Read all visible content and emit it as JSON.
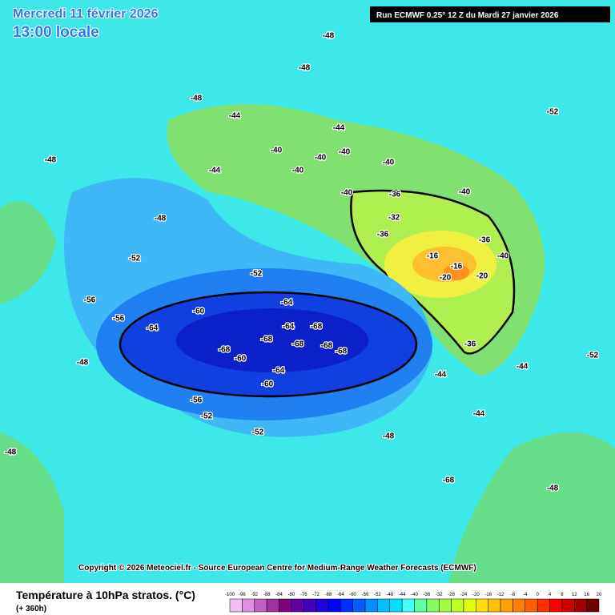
{
  "header": {
    "title": "Mercredi 11 février 2026",
    "subtitle": "13:00 locale",
    "run_info": "Run ECMWF 0.25° 12 Z du Mardi 27 janvier 2026"
  },
  "copyright": "Copyright © 2026 Meteociel.fr - Source European Centre for Medium-Range Weather Forecasts (ECMWF)",
  "caption": "Température à 10hPa stratos. (°C)",
  "caption_sub": "(+ 360h)",
  "contour_labels": [
    "-40",
    "-40",
    "-40",
    "-40",
    "-40",
    "-40",
    "-40",
    "-40",
    "-36",
    "-36",
    "-36",
    "-36",
    "-32",
    "-16",
    "-16",
    "-20",
    "-20",
    "-44",
    "-44",
    "-44",
    "-44",
    "-44",
    "-44",
    "-48",
    "-48",
    "-48",
    "-48",
    "-48",
    "-48",
    "-48",
    "-48",
    "-48",
    "-52",
    "-52",
    "-52",
    "-52",
    "-52",
    "-52",
    "-56",
    "-56",
    "-56",
    "-60",
    "-60",
    "-60",
    "-64",
    "-64",
    "-64",
    "-64",
    "-68",
    "-68",
    "-68",
    "-68",
    "-68",
    "-68",
    "-68"
  ],
  "colorbar": {
    "ticks": [
      -100,
      -96,
      -92,
      -88,
      -84,
      -80,
      -76,
      -72,
      -68,
      -64,
      -60,
      -56,
      -52,
      -48,
      -44,
      -40,
      -36,
      -32,
      -28,
      -24,
      -20,
      -16,
      -12,
      -8,
      -4,
      0,
      4,
      8,
      12,
      16,
      20
    ],
    "colors": [
      "#f0c0f0",
      "#e090e0",
      "#c060c0",
      "#a030a0",
      "#800080",
      "#6000a0",
      "#4000c0",
      "#2000e0",
      "#0000ff",
      "#0030ff",
      "#0060ff",
      "#0090ff",
      "#00c0ff",
      "#00e0ff",
      "#40ffff",
      "#60ffa0",
      "#80ff60",
      "#a0ff40",
      "#c0ff20",
      "#e0ff00",
      "#ffe000",
      "#ffc000",
      "#ffa000",
      "#ff8000",
      "#ff6000",
      "#ff3000",
      "#ff0000",
      "#d00000",
      "#a00000",
      "#700000"
    ]
  }
}
